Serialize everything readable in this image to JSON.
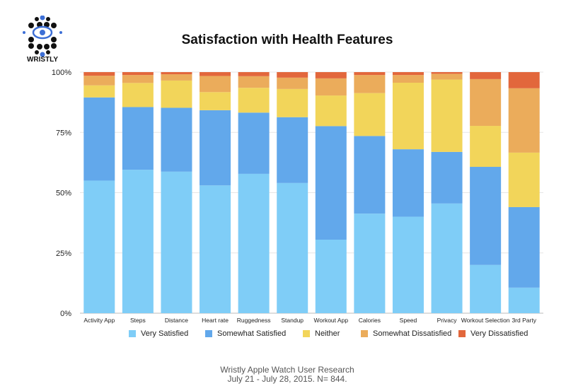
{
  "logo": {
    "text": "WRISTLY"
  },
  "footer": {
    "line1": "Wristly Apple Watch User Research",
    "line2": "July 21 - July 28, 2015.  N= 844."
  },
  "colors": {
    "Very Satisfied": "#7fcdf7",
    "Somewhat Satisfied": "#62a8eb",
    "Neither": "#f2d55a",
    "Somewhat Dissatisfied": "#ebac5b",
    "Very Dissatisfied": "#e2673c"
  },
  "chart_data": {
    "type": "bar",
    "stacked": true,
    "title": "Satisfaction with Health Features",
    "xlabel": "",
    "ylabel": "",
    "ylim": [
      0,
      100
    ],
    "yticks": [
      "0%",
      "25%",
      "50%",
      "75%",
      "100%"
    ],
    "grid": true,
    "legend_position": "bottom",
    "categories": [
      "Activity App",
      "Steps",
      "Distance",
      "Heart rate",
      "Ruggedness",
      "Standup",
      "Workout App",
      "Calories",
      "Speed",
      "Privacy",
      "Workout Selection",
      "3rd Party"
    ],
    "series": [
      {
        "name": "Very Satisfied",
        "values": [
          55,
          59.5,
          58.7,
          53,
          57.8,
          54,
          30.5,
          41.3,
          40,
          45.5,
          20,
          10.6
        ]
      },
      {
        "name": "Somewhat Satisfied",
        "values": [
          34.5,
          26,
          26.5,
          31.2,
          25.4,
          27.3,
          47.1,
          32.2,
          28,
          21.4,
          40.7,
          33.4
        ]
      },
      {
        "name": "Neither",
        "values": [
          5,
          10,
          11.3,
          7.5,
          10.3,
          11.7,
          12.7,
          17.8,
          27.6,
          30,
          17,
          22.6
        ]
      },
      {
        "name": "Somewhat Dissatisfied",
        "values": [
          4,
          3.3,
          2.6,
          6.7,
          4.8,
          4.7,
          7.1,
          7.5,
          3.2,
          2.4,
          19.4,
          26.7
        ]
      },
      {
        "name": "Very Dissatisfied",
        "values": [
          1.5,
          1.2,
          0.9,
          1.6,
          1.7,
          2.3,
          2.6,
          1.2,
          1.2,
          0.7,
          2.9,
          6.7
        ]
      }
    ]
  }
}
